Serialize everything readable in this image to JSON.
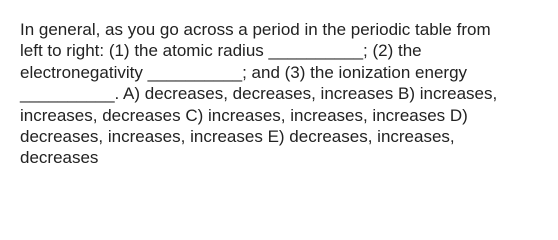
{
  "question": {
    "lines": [
      "In general, as you go across a period in the periodic table from",
      "left to right: (1) the atomic radius __________; (2) the",
      "electronegativity __________; and (3) the ionization energy",
      "__________. A) decreases, decreases, increases B) increases,",
      "increases, decreases C) increases, increases, increases D)",
      "decreases, increases, increases E) decreases, increases,",
      "decreases"
    ]
  }
}
